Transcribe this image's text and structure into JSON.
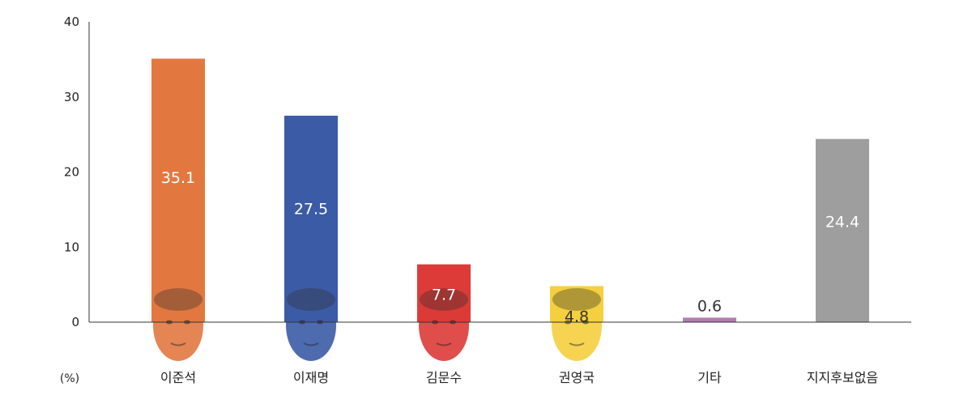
{
  "chart_data": {
    "type": "bar",
    "unit_label": "(%)",
    "categories": [
      "이준석",
      "이재명",
      "김문수",
      "권영국",
      "기타",
      "지지후보없음"
    ],
    "values": [
      35.1,
      27.5,
      7.7,
      4.8,
      0.6,
      24.4
    ],
    "value_labels": [
      "35.1",
      "27.5",
      "7.7",
      "4.8",
      "0.6",
      "24.4"
    ],
    "colors": [
      "#e27840",
      "#3c5ba6",
      "#dc3b37",
      "#f5cf3e",
      "#b27db0",
      "#9d9e9d"
    ],
    "label_colors": [
      "#ffffff",
      "#ffffff",
      "#ffffff",
      "#333333",
      "#333333",
      "#ffffff"
    ],
    "portrait_colors": [
      "#e27840",
      "#3c5ba6",
      "#dc3b37",
      "#f5cf3e",
      "",
      ""
    ],
    "ylim": [
      0,
      40
    ],
    "yticks": [
      0,
      10,
      20,
      30,
      40
    ],
    "grid": false
  }
}
